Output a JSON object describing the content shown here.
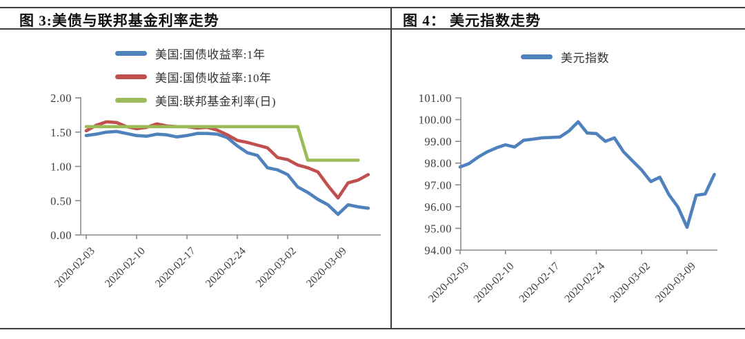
{
  "header": {
    "left_title": "图 3:美债与联邦基金利率走势",
    "right_title": "图 4： 美元指数走势"
  },
  "colors": {
    "series_blue": "#4F81BD",
    "series_red": "#C0504D",
    "series_green": "#9BBB59",
    "axis_line": "#8a8a8a",
    "tick_text": "#3f3f3f",
    "table_border": "#3d3d3d"
  },
  "chart_data": [
    {
      "type": "line",
      "title": "图 3:美债与联邦基金利率走势",
      "x": [
        "2020-02-03",
        "2020-02-04",
        "2020-02-05",
        "2020-02-06",
        "2020-02-07",
        "2020-02-10",
        "2020-02-11",
        "2020-02-12",
        "2020-02-13",
        "2020-02-14",
        "2020-02-17",
        "2020-02-18",
        "2020-02-19",
        "2020-02-20",
        "2020-02-21",
        "2020-02-24",
        "2020-02-25",
        "2020-02-26",
        "2020-02-27",
        "2020-02-28",
        "2020-03-02",
        "2020-03-03",
        "2020-03-04",
        "2020-03-05",
        "2020-03-06",
        "2020-03-09",
        "2020-03-10",
        "2020-03-11",
        "2020-03-12"
      ],
      "x_tick_labels": [
        "2020-02-03",
        "2020-02-10",
        "2020-02-17",
        "2020-02-24",
        "2020-03-02",
        "2020-03-09"
      ],
      "x_tick_indices": [
        0,
        5,
        10,
        15,
        20,
        25
      ],
      "ylim": [
        0.0,
        2.0
      ],
      "y_tick_labels": [
        "0.00",
        "0.50",
        "1.00",
        "1.50",
        "2.00"
      ],
      "grid": false,
      "legend_position": "top",
      "series": [
        {
          "name": "美国:国债收益率:1年",
          "color": "#4F81BD",
          "values": [
            1.45,
            1.47,
            1.5,
            1.51,
            1.48,
            1.45,
            1.44,
            1.47,
            1.46,
            1.43,
            1.45,
            1.48,
            1.48,
            1.47,
            1.42,
            1.3,
            1.2,
            1.16,
            0.98,
            0.95,
            0.88,
            0.7,
            0.62,
            0.52,
            0.44,
            0.3,
            0.44,
            0.41,
            0.39
          ]
        },
        {
          "name": "美国:国债收益率:10年",
          "color": "#C0504D",
          "values": [
            1.52,
            1.6,
            1.65,
            1.64,
            1.58,
            1.55,
            1.57,
            1.62,
            1.59,
            1.58,
            1.58,
            1.56,
            1.57,
            1.53,
            1.46,
            1.38,
            1.35,
            1.31,
            1.27,
            1.13,
            1.1,
            1.02,
            0.98,
            0.92,
            0.72,
            0.54,
            0.76,
            0.8,
            0.88
          ]
        },
        {
          "name": "美国:联邦基金利率(日)",
          "color": "#9BBB59",
          "values": [
            1.58,
            1.58,
            1.58,
            1.58,
            1.58,
            1.58,
            1.58,
            1.58,
            1.58,
            1.58,
            1.58,
            1.58,
            1.58,
            1.58,
            1.58,
            1.58,
            1.58,
            1.58,
            1.58,
            1.58,
            1.58,
            1.58,
            1.09,
            1.09,
            1.09,
            1.09,
            1.09,
            1.09,
            null
          ]
        }
      ]
    },
    {
      "type": "line",
      "title": "图 4： 美元指数走势",
      "x": [
        "2020-02-03",
        "2020-02-04",
        "2020-02-05",
        "2020-02-06",
        "2020-02-07",
        "2020-02-10",
        "2020-02-11",
        "2020-02-12",
        "2020-02-13",
        "2020-02-14",
        "2020-02-17",
        "2020-02-18",
        "2020-02-19",
        "2020-02-20",
        "2020-02-21",
        "2020-02-24",
        "2020-02-25",
        "2020-02-26",
        "2020-02-27",
        "2020-02-28",
        "2020-03-02",
        "2020-03-03",
        "2020-03-04",
        "2020-03-05",
        "2020-03-06",
        "2020-03-09",
        "2020-03-10",
        "2020-03-11",
        "2020-03-12"
      ],
      "x_tick_labels": [
        "2020-02-03",
        "2020-02-10",
        "2020-02-17",
        "2020-02-24",
        "2020-03-02",
        "2020-03-09"
      ],
      "x_tick_indices": [
        0,
        5,
        10,
        15,
        20,
        25
      ],
      "ylim": [
        94.0,
        101.0
      ],
      "y_tick_labels": [
        "94.00",
        "95.00",
        "96.00",
        "97.00",
        "98.00",
        "99.00",
        "100.00",
        "101.00"
      ],
      "grid": false,
      "legend_position": "top",
      "series": [
        {
          "name": "美元指数",
          "color": "#4F81BD",
          "values": [
            97.82,
            97.98,
            98.28,
            98.52,
            98.7,
            98.84,
            98.74,
            99.05,
            99.1,
            99.16,
            99.18,
            99.2,
            99.48,
            99.9,
            99.38,
            99.36,
            99.0,
            99.16,
            98.52,
            98.1,
            97.68,
            97.15,
            97.35,
            96.55,
            95.98,
            95.05,
            96.52,
            96.58,
            97.48
          ]
        }
      ]
    }
  ]
}
